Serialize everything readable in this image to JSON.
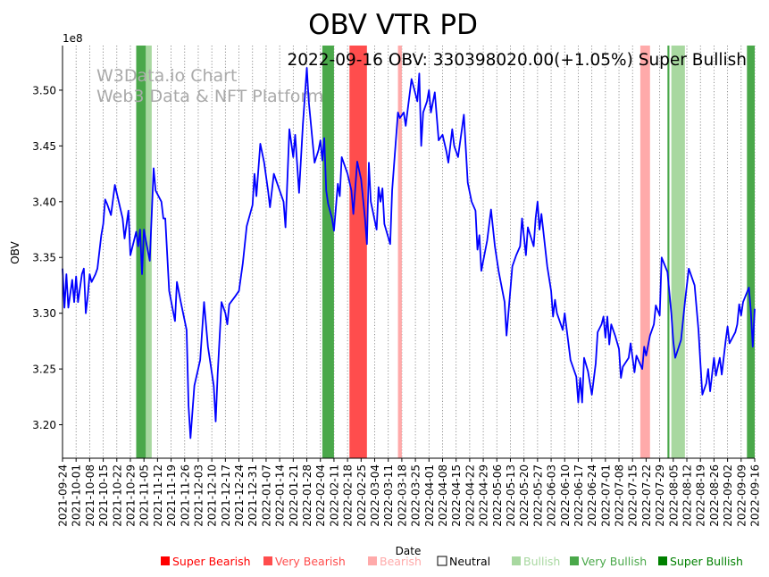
{
  "chart_data": {
    "type": "line",
    "title": "OBV VTR PD",
    "subtitle": "2022-09-16 OBV: 330398020.00(+1.05%) Super Bullish",
    "watermark": [
      "W3Data.io Chart",
      "Web3 Data & NFT Platform"
    ],
    "xlabel": "Date",
    "ylabel": "OBV",
    "y_scale_label": "1e8",
    "ylim": [
      3.17,
      3.54
    ],
    "y_ticks": [
      3.2,
      3.25,
      3.3,
      3.35,
      3.4,
      3.45,
      3.5
    ],
    "y_tick_labels": [
      "3.20",
      "3.25",
      "3.30",
      "3.35",
      "3.40",
      "3.45",
      "3.50"
    ],
    "x_range": [
      "2021-09-24",
      "2022-09-16"
    ],
    "x_tick_labels": [
      "2021-09-24",
      "2021-10-01",
      "2021-10-08",
      "2021-10-15",
      "2021-10-22",
      "2021-10-29",
      "2021-11-05",
      "2021-11-12",
      "2021-11-19",
      "2021-11-26",
      "2021-12-03",
      "2021-12-10",
      "2021-12-17",
      "2021-12-24",
      "2021-12-31",
      "2022-01-07",
      "2022-01-14",
      "2022-01-21",
      "2022-01-28",
      "2022-02-04",
      "2022-02-11",
      "2022-02-18",
      "2022-02-25",
      "2022-03-04",
      "2022-03-11",
      "2022-03-18",
      "2022-03-25",
      "2022-04-01",
      "2022-04-08",
      "2022-04-15",
      "2022-04-22",
      "2022-04-29",
      "2022-05-06",
      "2022-05-13",
      "2022-05-20",
      "2022-05-27",
      "2022-06-03",
      "2022-06-10",
      "2022-06-17",
      "2022-06-24",
      "2022-07-01",
      "2022-07-08",
      "2022-07-15",
      "2022-07-22",
      "2022-07-29",
      "2022-08-05",
      "2022-08-12",
      "2022-08-19",
      "2022-08-26",
      "2022-09-02",
      "2022-09-09",
      "2022-09-16"
    ],
    "grid": "x-dotted",
    "line_color": "#0000ff",
    "series": [
      {
        "points": [
          [
            "2021-09-24",
            3.34
          ],
          [
            "2021-09-25",
            3.305
          ],
          [
            "2021-09-26",
            3.335
          ],
          [
            "2021-09-27",
            3.305
          ],
          [
            "2021-09-29",
            3.33
          ],
          [
            "2021-09-30",
            3.31
          ],
          [
            "2021-10-01",
            3.333
          ],
          [
            "2021-10-02",
            3.31
          ],
          [
            "2021-10-04",
            3.335
          ],
          [
            "2021-10-05",
            3.34
          ],
          [
            "2021-10-06",
            3.3
          ],
          [
            "2021-10-07",
            3.315
          ],
          [
            "2021-10-08",
            3.335
          ],
          [
            "2021-10-09",
            3.328
          ],
          [
            "2021-10-11",
            3.335
          ],
          [
            "2021-10-12",
            3.34
          ],
          [
            "2021-10-14",
            3.37
          ],
          [
            "2021-10-15",
            3.38
          ],
          [
            "2021-10-16",
            3.402
          ],
          [
            "2021-10-17",
            3.398
          ],
          [
            "2021-10-19",
            3.388
          ],
          [
            "2021-10-21",
            3.415
          ],
          [
            "2021-10-23",
            3.4
          ],
          [
            "2021-10-25",
            3.385
          ],
          [
            "2021-10-26",
            3.367
          ],
          [
            "2021-10-28",
            3.392
          ],
          [
            "2021-10-29",
            3.352
          ],
          [
            "2021-11-01",
            3.373
          ],
          [
            "2021-11-02",
            3.36
          ],
          [
            "2021-11-03",
            3.375
          ],
          [
            "2021-11-04",
            3.335
          ],
          [
            "2021-11-05",
            3.375
          ],
          [
            "2021-11-06",
            3.365
          ],
          [
            "2021-11-08",
            3.347
          ],
          [
            "2021-11-10",
            3.43
          ],
          [
            "2021-11-11",
            3.41
          ],
          [
            "2021-11-14",
            3.4
          ],
          [
            "2021-11-15",
            3.385
          ],
          [
            "2021-11-16",
            3.385
          ],
          [
            "2021-11-18",
            3.32
          ],
          [
            "2021-11-21",
            3.293
          ],
          [
            "2021-11-22",
            3.328
          ],
          [
            "2021-11-24",
            3.31
          ],
          [
            "2021-11-27",
            3.285
          ],
          [
            "2021-11-28",
            3.217
          ],
          [
            "2021-11-29",
            3.188
          ],
          [
            "2021-12-01",
            3.235
          ],
          [
            "2021-12-04",
            3.258
          ],
          [
            "2021-12-06",
            3.31
          ],
          [
            "2021-12-08",
            3.27
          ],
          [
            "2021-12-11",
            3.235
          ],
          [
            "2021-12-12",
            3.203
          ],
          [
            "2021-12-13",
            3.245
          ],
          [
            "2021-12-15",
            3.31
          ],
          [
            "2021-12-17",
            3.3
          ],
          [
            "2021-12-18",
            3.29
          ],
          [
            "2021-12-19",
            3.308
          ],
          [
            "2021-12-22",
            3.315
          ],
          [
            "2021-12-24",
            3.32
          ],
          [
            "2021-12-26",
            3.345
          ],
          [
            "2021-12-28",
            3.378
          ],
          [
            "2021-12-31",
            3.397
          ],
          [
            "2022-01-01",
            3.425
          ],
          [
            "2022-01-02",
            3.405
          ],
          [
            "2022-01-04",
            3.452
          ],
          [
            "2022-01-06",
            3.435
          ],
          [
            "2022-01-08",
            3.41
          ],
          [
            "2022-01-09",
            3.395
          ],
          [
            "2022-01-11",
            3.425
          ],
          [
            "2022-01-14",
            3.41
          ],
          [
            "2022-01-16",
            3.4
          ],
          [
            "2022-01-17",
            3.377
          ],
          [
            "2022-01-19",
            3.465
          ],
          [
            "2022-01-21",
            3.44
          ],
          [
            "2022-01-22",
            3.46
          ],
          [
            "2022-01-24",
            3.408
          ],
          [
            "2022-01-26",
            3.47
          ],
          [
            "2022-01-28",
            3.52
          ],
          [
            "2022-01-29",
            3.49
          ],
          [
            "2022-02-01",
            3.435
          ],
          [
            "2022-02-03",
            3.446
          ],
          [
            "2022-02-04",
            3.455
          ],
          [
            "2022-02-05",
            3.437
          ],
          [
            "2022-02-06",
            3.457
          ],
          [
            "2022-02-07",
            3.41
          ],
          [
            "2022-02-08",
            3.398
          ],
          [
            "2022-02-10",
            3.385
          ],
          [
            "2022-02-11",
            3.374
          ],
          [
            "2022-02-13",
            3.416
          ],
          [
            "2022-02-14",
            3.405
          ],
          [
            "2022-02-15",
            3.44
          ],
          [
            "2022-02-18",
            3.425
          ],
          [
            "2022-02-20",
            3.41
          ],
          [
            "2022-02-21",
            3.389
          ],
          [
            "2022-02-23",
            3.436
          ],
          [
            "2022-02-25",
            3.42
          ],
          [
            "2022-02-27",
            3.385
          ],
          [
            "2022-02-28",
            3.362
          ],
          [
            "2022-03-01",
            3.435
          ],
          [
            "2022-03-02",
            3.4
          ],
          [
            "2022-03-05",
            3.375
          ],
          [
            "2022-03-06",
            3.413
          ],
          [
            "2022-03-07",
            3.4
          ],
          [
            "2022-03-08",
            3.412
          ],
          [
            "2022-03-09",
            3.38
          ],
          [
            "2022-03-12",
            3.362
          ],
          [
            "2022-03-13",
            3.41
          ],
          [
            "2022-03-16",
            3.48
          ],
          [
            "2022-03-17",
            3.475
          ],
          [
            "2022-03-19",
            3.48
          ],
          [
            "2022-03-20",
            3.468
          ],
          [
            "2022-03-21",
            3.482
          ],
          [
            "2022-03-23",
            3.51
          ],
          [
            "2022-03-26",
            3.49
          ],
          [
            "2022-03-27",
            3.515
          ],
          [
            "2022-03-28",
            3.45
          ],
          [
            "2022-03-29",
            3.48
          ],
          [
            "2022-03-31",
            3.49
          ],
          [
            "2022-04-01",
            3.5
          ],
          [
            "2022-04-02",
            3.48
          ],
          [
            "2022-04-04",
            3.498
          ],
          [
            "2022-04-06",
            3.455
          ],
          [
            "2022-04-08",
            3.46
          ],
          [
            "2022-04-10",
            3.445
          ],
          [
            "2022-04-11",
            3.435
          ],
          [
            "2022-04-13",
            3.465
          ],
          [
            "2022-04-14",
            3.45
          ],
          [
            "2022-04-16",
            3.44
          ],
          [
            "2022-04-19",
            3.478
          ],
          [
            "2022-04-21",
            3.417
          ],
          [
            "2022-04-23",
            3.4
          ],
          [
            "2022-04-25",
            3.392
          ],
          [
            "2022-04-26",
            3.357
          ],
          [
            "2022-04-27",
            3.37
          ],
          [
            "2022-04-28",
            3.338
          ],
          [
            "2022-05-01",
            3.365
          ],
          [
            "2022-05-03",
            3.393
          ],
          [
            "2022-05-05",
            3.36
          ],
          [
            "2022-05-07",
            3.337
          ],
          [
            "2022-05-10",
            3.31
          ],
          [
            "2022-05-11",
            3.28
          ],
          [
            "2022-05-14",
            3.342
          ],
          [
            "2022-05-16",
            3.352
          ],
          [
            "2022-05-18",
            3.36
          ],
          [
            "2022-05-19",
            3.385
          ],
          [
            "2022-05-21",
            3.352
          ],
          [
            "2022-05-22",
            3.377
          ],
          [
            "2022-05-25",
            3.36
          ],
          [
            "2022-05-26",
            3.385
          ],
          [
            "2022-05-27",
            3.4
          ],
          [
            "2022-05-28",
            3.375
          ],
          [
            "2022-05-29",
            3.389
          ],
          [
            "2022-06-01",
            3.342
          ],
          [
            "2022-06-03",
            3.32
          ],
          [
            "2022-06-04",
            3.297
          ],
          [
            "2022-06-05",
            3.312
          ],
          [
            "2022-06-06",
            3.3
          ],
          [
            "2022-06-08",
            3.29
          ],
          [
            "2022-06-09",
            3.285
          ],
          [
            "2022-06-10",
            3.3
          ],
          [
            "2022-06-13",
            3.258
          ],
          [
            "2022-06-15",
            3.248
          ],
          [
            "2022-06-16",
            3.243
          ],
          [
            "2022-06-17",
            3.22
          ],
          [
            "2022-06-18",
            3.242
          ],
          [
            "2022-06-19",
            3.22
          ],
          [
            "2022-06-20",
            3.26
          ],
          [
            "2022-06-22",
            3.248
          ],
          [
            "2022-06-24",
            3.227
          ],
          [
            "2022-06-26",
            3.255
          ],
          [
            "2022-06-27",
            3.283
          ],
          [
            "2022-06-29",
            3.29
          ],
          [
            "2022-06-30",
            3.297
          ],
          [
            "2022-07-01",
            3.278
          ],
          [
            "2022-07-02",
            3.297
          ],
          [
            "2022-07-03",
            3.272
          ],
          [
            "2022-07-04",
            3.29
          ],
          [
            "2022-07-06",
            3.28
          ],
          [
            "2022-07-08",
            3.268
          ],
          [
            "2022-07-09",
            3.242
          ],
          [
            "2022-07-10",
            3.252
          ],
          [
            "2022-07-13",
            3.26
          ],
          [
            "2022-07-14",
            3.273
          ],
          [
            "2022-07-16",
            3.247
          ],
          [
            "2022-07-17",
            3.262
          ],
          [
            "2022-07-20",
            3.25
          ],
          [
            "2022-07-21",
            3.27
          ],
          [
            "2022-07-22",
            3.262
          ],
          [
            "2022-07-24",
            3.28
          ],
          [
            "2022-07-26",
            3.29
          ],
          [
            "2022-07-27",
            3.307
          ],
          [
            "2022-07-29",
            3.298
          ],
          [
            "2022-07-30",
            3.35
          ],
          [
            "2022-08-02",
            3.337
          ],
          [
            "2022-08-04",
            3.3
          ],
          [
            "2022-08-05",
            3.275
          ],
          [
            "2022-08-06",
            3.26
          ],
          [
            "2022-08-09",
            3.276
          ],
          [
            "2022-08-11",
            3.31
          ],
          [
            "2022-08-12",
            3.325
          ],
          [
            "2022-08-13",
            3.34
          ],
          [
            "2022-08-16",
            3.325
          ],
          [
            "2022-08-18",
            3.285
          ],
          [
            "2022-08-19",
            3.255
          ],
          [
            "2022-08-20",
            3.227
          ],
          [
            "2022-08-22",
            3.237
          ],
          [
            "2022-08-23",
            3.25
          ],
          [
            "2022-08-24",
            3.23
          ],
          [
            "2022-08-25",
            3.245
          ],
          [
            "2022-08-26",
            3.26
          ],
          [
            "2022-08-27",
            3.244
          ],
          [
            "2022-08-29",
            3.26
          ],
          [
            "2022-08-30",
            3.245
          ],
          [
            "2022-09-01",
            3.275
          ],
          [
            "2022-09-02",
            3.288
          ],
          [
            "2022-09-03",
            3.273
          ],
          [
            "2022-09-06",
            3.283
          ],
          [
            "2022-09-07",
            3.29
          ],
          [
            "2022-09-08",
            3.308
          ],
          [
            "2022-09-09",
            3.298
          ],
          [
            "2022-09-10",
            3.31
          ],
          [
            "2022-09-13",
            3.323
          ],
          [
            "2022-09-14",
            3.302
          ],
          [
            "2022-09-15",
            3.27
          ],
          [
            "2022-09-16",
            3.304
          ]
        ]
      }
    ],
    "signal_bands": [
      {
        "start": "2021-11-01",
        "end": "2021-11-06",
        "level": "Very Bullish"
      },
      {
        "start": "2021-11-06",
        "end": "2021-11-09",
        "level": "Bullish"
      },
      {
        "start": "2022-02-05",
        "end": "2022-02-11",
        "level": "Very Bullish"
      },
      {
        "start": "2022-02-19",
        "end": "2022-02-28",
        "level": "Very Bearish"
      },
      {
        "start": "2022-03-16",
        "end": "2022-03-18",
        "level": "Bearish"
      },
      {
        "start": "2022-07-19",
        "end": "2022-07-24",
        "level": "Bearish"
      },
      {
        "start": "2022-08-02",
        "end": "2022-08-03",
        "level": "Very Bullish"
      },
      {
        "start": "2022-08-04",
        "end": "2022-08-11",
        "level": "Bullish"
      },
      {
        "start": "2022-09-12",
        "end": "2022-09-16",
        "level": "Very Bullish"
      }
    ],
    "legend": [
      {
        "label": "Super Bearish",
        "color": "#ff0000"
      },
      {
        "label": "Very Bearish",
        "color": "#ff4d4d"
      },
      {
        "label": "Bearish",
        "color": "#ffaaaa"
      },
      {
        "label": "Neutral",
        "color": "#000000"
      },
      {
        "label": "Bullish",
        "color": "#a8d8a0"
      },
      {
        "label": "Very Bullish",
        "color": "#4aa84a"
      },
      {
        "label": "Super Bullish",
        "color": "#008000"
      }
    ],
    "legend_placement": "bottom",
    "band_colors": {
      "Very Bullish": "#4aa84a",
      "Bullish": "#a8d8a0",
      "Very Bearish": "#ff4d4d",
      "Bearish": "#ffaaaa"
    }
  }
}
